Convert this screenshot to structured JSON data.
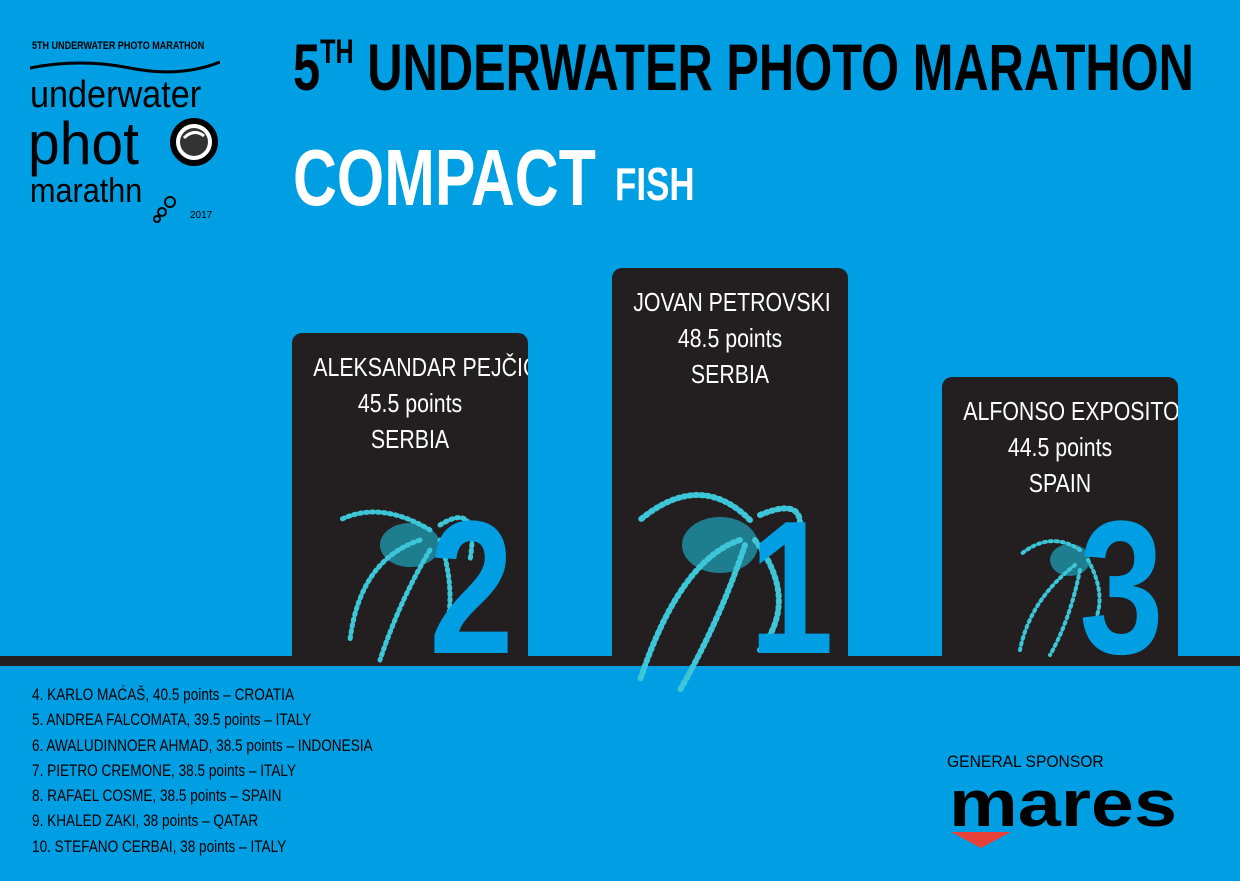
{
  "logo": {
    "top": "5TH UNDERWATER PHOTO MARATHON",
    "line1": "underwater",
    "line2": "phot",
    "line3": "marath",
    "line3b": "n",
    "year": "2017"
  },
  "title": {
    "prefix": "5",
    "sup": "TH",
    "main": " UNDERWATER PHOTO MARATHON"
  },
  "category": {
    "main": "COMPACT",
    "sub": "FISH"
  },
  "podium": [
    {
      "rank": "2",
      "name": "ALEKSANDAR PEJČIĆ",
      "points": "45.5 points",
      "country": "SERBIA"
    },
    {
      "rank": "1",
      "name": "JOVAN PETROVSKI",
      "points": "48.5 points",
      "country": "SERBIA"
    },
    {
      "rank": "3",
      "name": "ALFONSO EXPOSITO",
      "points": "44.5 points",
      "country": "SPAIN"
    }
  ],
  "rankings": [
    "4. KARLO MAĆAŠ, 40.5 points – CROATIA",
    "5. ANDREA FALCOMATA, 39.5 points – ITALY",
    "6. AWALUDINNOER AHMAD, 38.5 points – INDONESIA",
    "7. PIETRO CREMONE, 38.5 points – ITALY",
    "8. RAFAEL COSME, 38.5 points – SPAIN",
    "9. KHALED ZAKI, 38 points – QATAR",
    "10. STEFANO CERBAI, 38 points – ITALY"
  ],
  "sponsor": {
    "label": "GENERAL SPONSOR",
    "brand": "mares",
    "brand_arrow_color": "#e8413a"
  },
  "colors": {
    "background": "#009fe3",
    "podium": "#231f20",
    "octopus": "#3cc6d8"
  }
}
